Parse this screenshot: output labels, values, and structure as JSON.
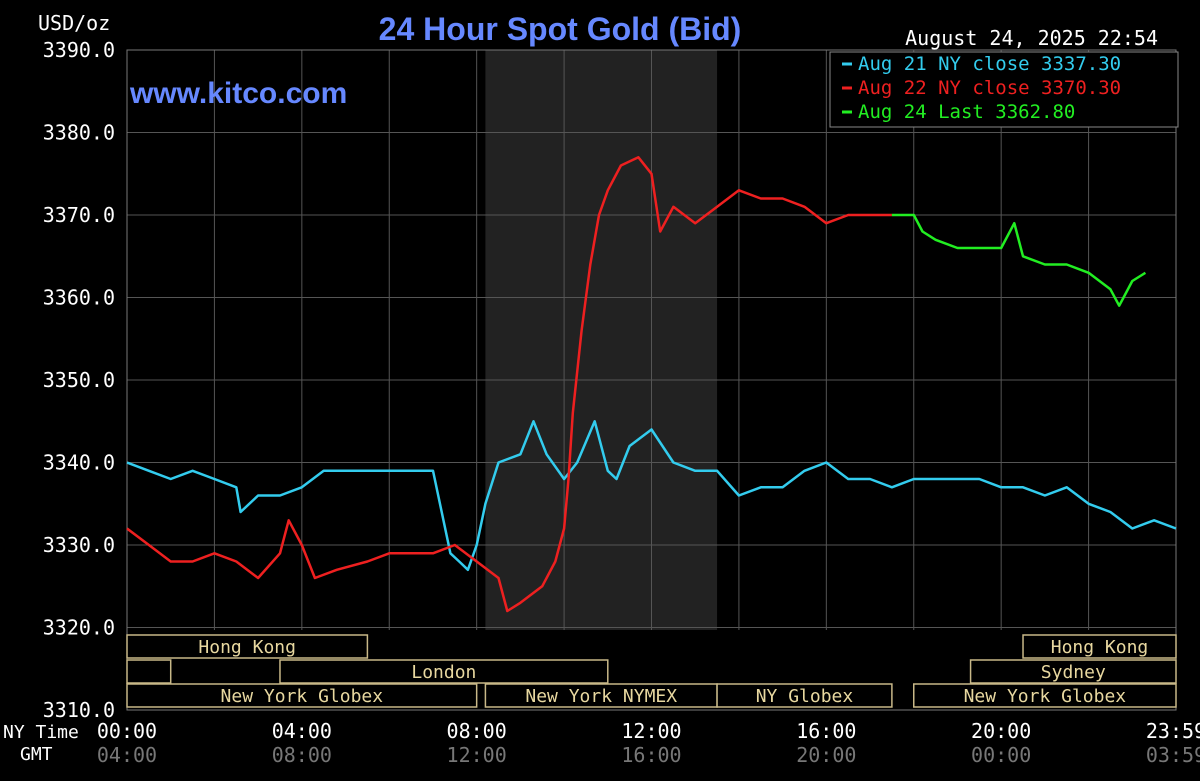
{
  "header": {
    "unit_label": "USD/oz",
    "title": "24 Hour Spot Gold (Bid)",
    "timestamp": "August 24, 2025 22:54",
    "watermark": "www.kitco.com"
  },
  "legend": [
    {
      "text": "Aug 21 NY close 3337.30",
      "color": "#33ccee"
    },
    {
      "text": "Aug 22 NY close 3370.30",
      "color": "#ee2020"
    },
    {
      "text": "Aug 24 Last 3362.80",
      "color": "#22ee22"
    }
  ],
  "axis_labels": {
    "ny_time": "NY Time",
    "gmt": "GMT"
  },
  "x_ticks": [
    {
      "hour": 0,
      "ny": "00:00",
      "gmt": "04:00"
    },
    {
      "hour": 4,
      "ny": "04:00",
      "gmt": "08:00"
    },
    {
      "hour": 8,
      "ny": "08:00",
      "gmt": "12:00"
    },
    {
      "hour": 12,
      "ny": "12:00",
      "gmt": "16:00"
    },
    {
      "hour": 16,
      "ny": "16:00",
      "gmt": "20:00"
    },
    {
      "hour": 20,
      "ny": "20:00",
      "gmt": "00:00"
    },
    {
      "hour": 24,
      "ny": "23:59",
      "gmt": "03:59"
    }
  ],
  "y_ticks": [
    "3390.0",
    "3380.0",
    "3370.0",
    "3360.0",
    "3350.0",
    "3340.0",
    "3330.0",
    "3320.0",
    "3310.0"
  ],
  "sessions": [
    {
      "label": "Hong Kong",
      "start": 0,
      "end": 5.5,
      "row": 0
    },
    {
      "label": "",
      "start": 0,
      "end": 1.0,
      "row": 1
    },
    {
      "label": "London",
      "start": 3.5,
      "end": 11.0,
      "row": 1
    },
    {
      "label": "New York Globex",
      "start": 0,
      "end": 8.0,
      "row": 2
    },
    {
      "label": "New York NYMEX",
      "start": 8.2,
      "end": 13.5,
      "row": 2
    },
    {
      "label": "NY Globex",
      "start": 13.5,
      "end": 17.5,
      "row": 2
    },
    {
      "label": "Hong Kong",
      "start": 20.5,
      "end": 24,
      "row": 0
    },
    {
      "label": "Sydney",
      "start": 19.3,
      "end": 24,
      "row": 1
    },
    {
      "label": "New York Globex",
      "start": 18.0,
      "end": 24,
      "row": 2
    }
  ],
  "chart_data": {
    "type": "line",
    "title": "24 Hour Spot Gold (Bid)",
    "ylabel": "USD/oz",
    "xlim": [
      0,
      24
    ],
    "ylim": [
      3310,
      3390
    ],
    "shaded_region": [
      8.2,
      13.5
    ],
    "series": [
      {
        "name": "Aug 21 NY close 3337.30",
        "color": "#33ccee",
        "points": [
          [
            0,
            3340
          ],
          [
            0.5,
            3339
          ],
          [
            1,
            3338
          ],
          [
            1.5,
            3339
          ],
          [
            2,
            3338
          ],
          [
            2.5,
            3337
          ],
          [
            2.6,
            3334
          ],
          [
            3,
            3336
          ],
          [
            3.5,
            3336
          ],
          [
            4,
            3337
          ],
          [
            4.5,
            3339
          ],
          [
            5,
            3339
          ],
          [
            5.5,
            3339
          ],
          [
            6,
            3339
          ],
          [
            6.5,
            3339
          ],
          [
            7,
            3339
          ],
          [
            7.2,
            3334
          ],
          [
            7.4,
            3329
          ],
          [
            7.6,
            3328
          ],
          [
            7.8,
            3327
          ],
          [
            8.0,
            3330
          ],
          [
            8.2,
            3335
          ],
          [
            8.5,
            3340
          ],
          [
            9.0,
            3341
          ],
          [
            9.3,
            3345
          ],
          [
            9.6,
            3341
          ],
          [
            10,
            3338
          ],
          [
            10.3,
            3340
          ],
          [
            10.7,
            3345
          ],
          [
            11,
            3339
          ],
          [
            11.2,
            3338
          ],
          [
            11.5,
            3342
          ],
          [
            12,
            3344
          ],
          [
            12.5,
            3340
          ],
          [
            13,
            3339
          ],
          [
            13.5,
            3339
          ],
          [
            14,
            3336
          ],
          [
            14.5,
            3337
          ],
          [
            15,
            3337
          ],
          [
            15.5,
            3339
          ],
          [
            16,
            3340
          ],
          [
            16.5,
            3338
          ],
          [
            17,
            3338
          ],
          [
            17.5,
            3337
          ],
          [
            18,
            3338
          ],
          [
            18.5,
            3338
          ],
          [
            19,
            3338
          ],
          [
            19.5,
            3338
          ],
          [
            20,
            3337
          ],
          [
            20.5,
            3337
          ],
          [
            21,
            3336
          ],
          [
            21.5,
            3337
          ],
          [
            22,
            3335
          ],
          [
            22.5,
            3334
          ],
          [
            23,
            3332
          ],
          [
            23.5,
            3333
          ],
          [
            24,
            3332
          ]
        ]
      },
      {
        "name": "Aug 22 NY close 3370.30",
        "color": "#ee2020",
        "points": [
          [
            0,
            3332
          ],
          [
            0.5,
            3330
          ],
          [
            1,
            3328
          ],
          [
            1.5,
            3328
          ],
          [
            2,
            3329
          ],
          [
            2.5,
            3328
          ],
          [
            3,
            3326
          ],
          [
            3.5,
            3329
          ],
          [
            3.7,
            3333
          ],
          [
            4,
            3330
          ],
          [
            4.3,
            3326
          ],
          [
            4.8,
            3327
          ],
          [
            5.5,
            3328
          ],
          [
            6,
            3329
          ],
          [
            6.5,
            3329
          ],
          [
            7,
            3329
          ],
          [
            7.5,
            3330
          ],
          [
            8,
            3328
          ],
          [
            8.5,
            3326
          ],
          [
            8.7,
            3322
          ],
          [
            9,
            3323
          ],
          [
            9.5,
            3325
          ],
          [
            9.8,
            3328
          ],
          [
            10,
            3332
          ],
          [
            10.1,
            3338
          ],
          [
            10.2,
            3346
          ],
          [
            10.4,
            3356
          ],
          [
            10.6,
            3364
          ],
          [
            10.8,
            3370
          ],
          [
            11,
            3373
          ],
          [
            11.3,
            3376
          ],
          [
            11.7,
            3377
          ],
          [
            12,
            3375
          ],
          [
            12.2,
            3368
          ],
          [
            12.5,
            3371
          ],
          [
            13,
            3369
          ],
          [
            13.5,
            3371
          ],
          [
            14,
            3373
          ],
          [
            14.5,
            3372
          ],
          [
            15,
            3372
          ],
          [
            15.5,
            3371
          ],
          [
            16,
            3369
          ],
          [
            16.5,
            3370
          ],
          [
            17,
            3370
          ],
          [
            17.5,
            3370
          ]
        ]
      },
      {
        "name": "Aug 24 Last 3362.80",
        "color": "#22ee22",
        "points": [
          [
            17.5,
            3370
          ],
          [
            18,
            3370
          ],
          [
            18.2,
            3368
          ],
          [
            18.5,
            3367
          ],
          [
            19,
            3366
          ],
          [
            19.5,
            3366
          ],
          [
            20,
            3366
          ],
          [
            20.3,
            3369
          ],
          [
            20.5,
            3365
          ],
          [
            21,
            3364
          ],
          [
            21.5,
            3364
          ],
          [
            22,
            3363
          ],
          [
            22.5,
            3361
          ],
          [
            22.7,
            3359
          ],
          [
            23,
            3362
          ],
          [
            23.3,
            3363
          ]
        ]
      }
    ]
  }
}
